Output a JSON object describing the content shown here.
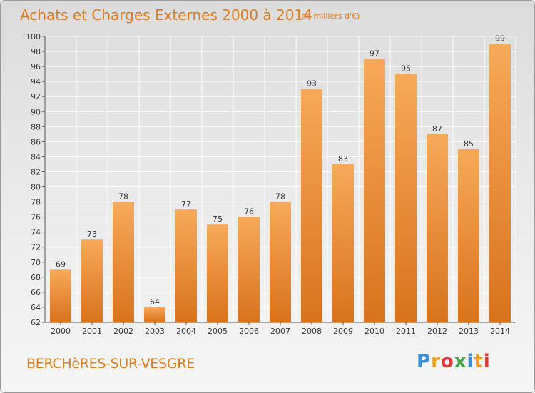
{
  "header": {
    "title": "Achats et Charges Externes 2000 à 2014",
    "unit": "(en milliers d'€)"
  },
  "footer": {
    "place": "BERCHèRES-SUR-VESGRE",
    "logo": "Proxiti"
  },
  "colors": {
    "bar_top": "#f7a95a",
    "bar_bottom": "#d8731d",
    "title": "#e07c1c",
    "grid": "#ffffff"
  },
  "chart_data": {
    "type": "bar",
    "categories": [
      "2000",
      "2001",
      "2002",
      "2003",
      "2004",
      "2005",
      "2006",
      "2007",
      "2008",
      "2009",
      "2010",
      "2011",
      "2012",
      "2013",
      "2014"
    ],
    "values": [
      69,
      73,
      78,
      64,
      77,
      75,
      76,
      78,
      93,
      83,
      97,
      95,
      87,
      85,
      99
    ],
    "ylim": [
      62,
      100
    ],
    "yticks": [
      62,
      64,
      66,
      68,
      70,
      72,
      74,
      76,
      78,
      80,
      82,
      84,
      86,
      88,
      90,
      92,
      94,
      96,
      98,
      100
    ],
    "grid": true,
    "show_value_labels": true
  }
}
